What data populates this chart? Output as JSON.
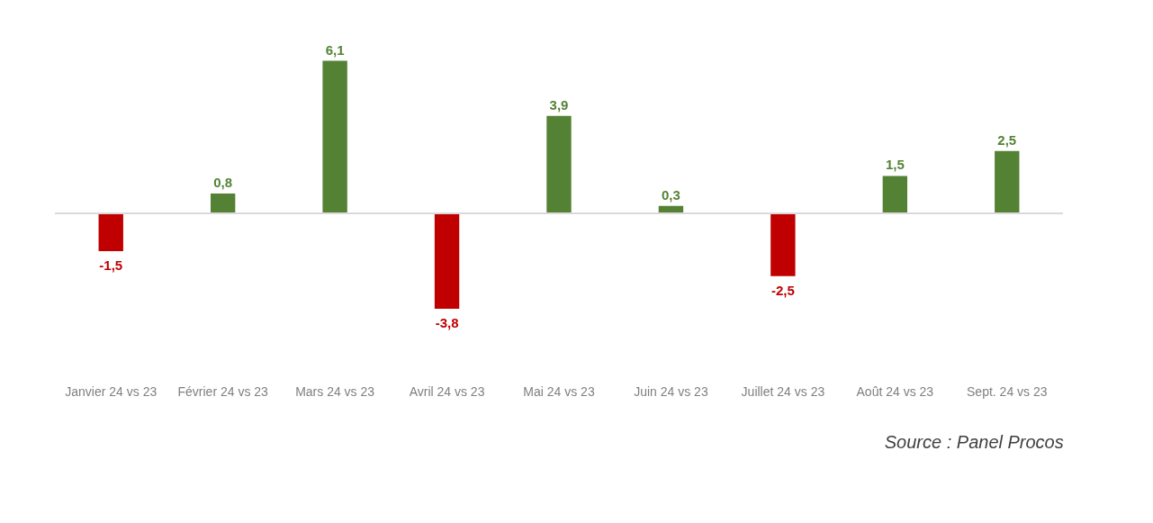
{
  "chart_data": {
    "type": "bar",
    "categories": [
      "Janvier 24 vs 23",
      "Février 24 vs 23",
      "Mars 24 vs 23",
      "Avril 24 vs 23",
      "Mai 24 vs 23",
      "Juin 24 vs 23",
      "Juillet 24 vs 23",
      "Août 24 vs 23",
      "Sept. 24 vs 23"
    ],
    "values": [
      -1.5,
      0.8,
      6.1,
      -3.8,
      3.9,
      0.3,
      -2.5,
      1.5,
      2.5
    ],
    "colors": [
      "#c00000",
      "#548235",
      "#548235",
      "#c00000",
      "#548235",
      "#548235",
      "#c00000",
      "#548235",
      "#548235"
    ],
    "value_labels": [
      "-1,5",
      "0,8",
      "6,1",
      "-3,8",
      "3,9",
      "0,3",
      "-2,5",
      "1,5",
      "2,5"
    ],
    "annotations": [
      "Source : Panel Procos"
    ]
  }
}
